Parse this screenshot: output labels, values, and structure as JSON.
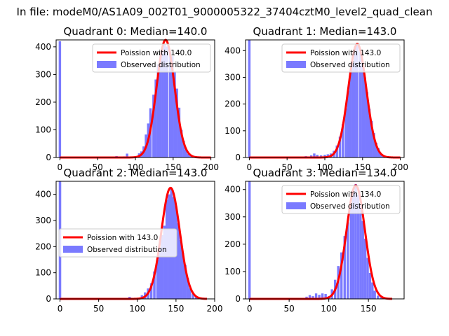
{
  "figure": {
    "suptitle": "In file: modeM0/AS1A09_002T01_9000005322_37404cztM0_level2_quad_clean"
  },
  "colors": {
    "hist": "#7a7aff",
    "line": "#ff0000",
    "axis": "#000000"
  },
  "chart_data": [
    {
      "type": "bar",
      "title": "Quadrant 0: Median=140.0",
      "xlim": [
        -5,
        205
      ],
      "ylim": [
        0,
        425
      ],
      "xticks": [
        0,
        50,
        100,
        150,
        200
      ],
      "yticks": [
        0,
        100,
        200,
        300,
        400
      ],
      "legend": [
        "Poission with 140.0",
        "Observed distribution"
      ],
      "legend_loc": "upper right",
      "mean": 140,
      "scale": 425,
      "line_x_range": [
        0,
        200
      ],
      "bar_width": 3.2,
      "hist": [
        [
          0,
          420
        ],
        [
          75,
          5
        ],
        [
          85,
          4
        ],
        [
          89,
          14
        ],
        [
          95,
          3
        ],
        [
          102,
          3
        ],
        [
          105,
          15
        ],
        [
          108,
          22
        ],
        [
          111,
          40
        ],
        [
          114,
          83
        ],
        [
          117,
          123
        ],
        [
          120,
          178
        ],
        [
          124,
          227
        ],
        [
          127,
          282
        ],
        [
          130,
          336
        ],
        [
          133,
          366
        ],
        [
          136,
          396
        ],
        [
          139,
          411
        ],
        [
          142,
          401
        ],
        [
          146,
          381
        ],
        [
          149,
          366
        ],
        [
          152,
          311
        ],
        [
          155,
          249
        ],
        [
          158,
          180
        ],
        [
          161,
          100
        ],
        [
          164,
          60
        ],
        [
          167,
          28
        ],
        [
          170,
          13
        ],
        [
          173,
          5
        ]
      ]
    },
    {
      "type": "bar",
      "title": "Quadrant 1: Median=143.0",
      "xlim": [
        -5,
        205
      ],
      "ylim": [
        0,
        440
      ],
      "xticks": [
        0,
        50,
        100,
        150,
        200
      ],
      "yticks": [
        0,
        100,
        200,
        300,
        400
      ],
      "legend": [
        "Poission with 143.0",
        "Observed distribution"
      ],
      "legend_loc": "upper right",
      "mean": 143,
      "scale": 425,
      "line_x_range": [
        0,
        200
      ],
      "bar_width": 3.2,
      "hist": [
        [
          0,
          440
        ],
        [
          75,
          5
        ],
        [
          82,
          8
        ],
        [
          86,
          15
        ],
        [
          90,
          10
        ],
        [
          95,
          8
        ],
        [
          100,
          10
        ],
        [
          104,
          12
        ],
        [
          108,
          15
        ],
        [
          112,
          25
        ],
        [
          116,
          45
        ],
        [
          120,
          78
        ],
        [
          124,
          125
        ],
        [
          128,
          184
        ],
        [
          131,
          250
        ],
        [
          134,
          325
        ],
        [
          137,
          355
        ],
        [
          140,
          415
        ],
        [
          143,
          420
        ],
        [
          147,
          396
        ],
        [
          150,
          352
        ],
        [
          153,
          300
        ],
        [
          156,
          245
        ],
        [
          159,
          182
        ],
        [
          162,
          137
        ],
        [
          165,
          92
        ],
        [
          168,
          55
        ],
        [
          171,
          35
        ],
        [
          174,
          15
        ],
        [
          177,
          5
        ]
      ]
    },
    {
      "type": "bar",
      "title": "Quadrant 2: Median=143.0",
      "xlim": [
        -5,
        200
      ],
      "ylim": [
        0,
        450
      ],
      "xticks": [
        0,
        50,
        100,
        150,
        200
      ],
      "yticks": [
        0,
        100,
        200,
        300,
        400
      ],
      "legend": [
        "Poission with 143.0",
        "Observed distribution"
      ],
      "legend_loc": "center left",
      "mean": 143,
      "scale": 425,
      "line_x_range": [
        0,
        190
      ],
      "bar_width": 3.2,
      "hist": [
        [
          0,
          450
        ],
        [
          90,
          8
        ],
        [
          102,
          4
        ],
        [
          106,
          14
        ],
        [
          110,
          25
        ],
        [
          114,
          40
        ],
        [
          118,
          60
        ],
        [
          122,
          105
        ],
        [
          126,
          150
        ],
        [
          129,
          195
        ],
        [
          132,
          244
        ],
        [
          135,
          280
        ],
        [
          138,
          380
        ],
        [
          141,
          400
        ],
        [
          144,
          421
        ],
        [
          147,
          390
        ],
        [
          150,
          355
        ],
        [
          153,
          290
        ],
        [
          156,
          225
        ],
        [
          159,
          175
        ],
        [
          162,
          130
        ],
        [
          165,
          80
        ],
        [
          168,
          40
        ],
        [
          172,
          20
        ],
        [
          176,
          10
        ],
        [
          180,
          4
        ]
      ]
    },
    {
      "type": "bar",
      "title": "Quadrant 3: Median=134.0",
      "xlim": [
        -5,
        195
      ],
      "ylim": [
        0,
        430
      ],
      "xticks": [
        0,
        50,
        100,
        150
      ],
      "yticks": [
        0,
        100,
        200,
        300,
        400
      ],
      "legend": [
        "Poission with 134.0",
        "Observed distribution"
      ],
      "legend_loc": "upper right",
      "mean": 134,
      "scale": 415,
      "line_x_range": [
        0,
        180
      ],
      "bar_width": 3.0,
      "hist": [
        [
          0,
          430
        ],
        [
          72,
          8
        ],
        [
          76,
          14
        ],
        [
          80,
          10
        ],
        [
          84,
          20
        ],
        [
          88,
          15
        ],
        [
          92,
          20
        ],
        [
          96,
          18
        ],
        [
          100,
          10
        ],
        [
          104,
          35
        ],
        [
          108,
          70
        ],
        [
          112,
          120
        ],
        [
          116,
          170
        ],
        [
          120,
          230
        ],
        [
          124,
          280
        ],
        [
          128,
          340
        ],
        [
          131,
          390
        ],
        [
          134,
          420
        ],
        [
          137,
          380
        ],
        [
          140,
          340
        ],
        [
          143,
          285
        ],
        [
          146,
          220
        ],
        [
          149,
          150
        ],
        [
          152,
          95
        ],
        [
          155,
          60
        ],
        [
          158,
          30
        ],
        [
          162,
          12
        ],
        [
          166,
          5
        ]
      ]
    }
  ]
}
